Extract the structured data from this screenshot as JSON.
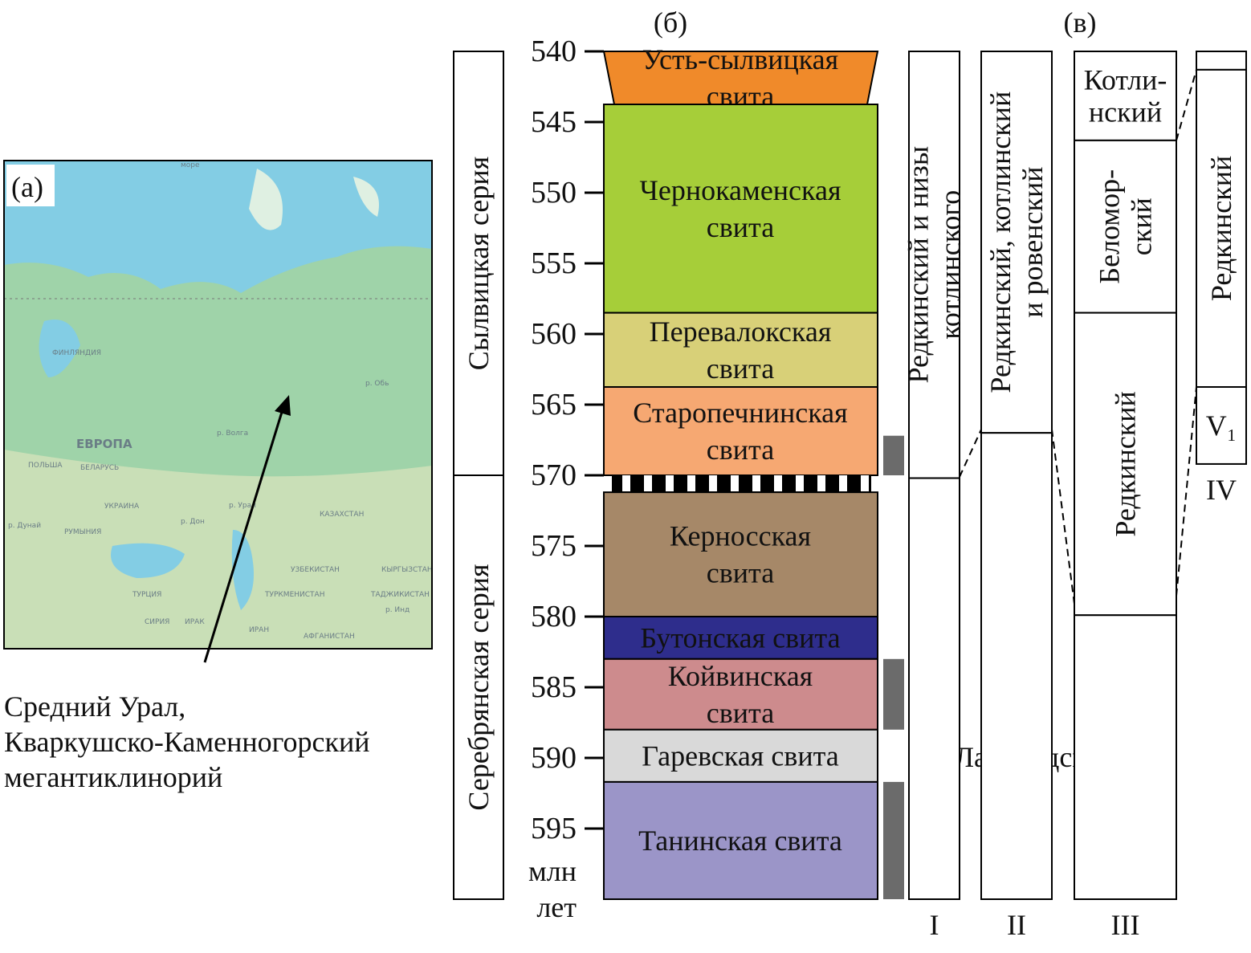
{
  "panels": {
    "a": "(а)",
    "b": "(б)",
    "v": "(в)"
  },
  "map": {
    "labels": [
      "море",
      "ФИНЛЯНДИЯ",
      "ЕВРОПА",
      "р. Обь",
      "р. Волга",
      "ПОЛЬША",
      "БЕЛАРУСЬ",
      "УКРАИНА",
      "р. Дон",
      "р. Урал",
      "КАЗАХСТАН",
      "р. Дунай",
      "РУМЫНИЯ",
      "УЗБЕКИСТАН",
      "КЫРГЫЗСТАН",
      "ТУРЦИЯ",
      "ТУРКМЕНИСТАН",
      "ТАДЖИКИСТАН",
      "р. Инд",
      "СИРИЯ",
      "ИРАК",
      "ИРАН",
      "АФГАНИСТАН"
    ]
  },
  "caption": [
    "Средний Урал,",
    "Кваркушско-Каменногорский",
    "мегантиклинорий"
  ],
  "age_axis": {
    "lim": [
      540,
      600
    ],
    "ticks": [
      540,
      545,
      550,
      555,
      560,
      565,
      570,
      575,
      580,
      585,
      590,
      595
    ],
    "unit": [
      "млн",
      "лет"
    ]
  },
  "series": [
    {
      "name": "Сылвицкая серия",
      "top": 540,
      "bottom": 570
    },
    {
      "name": "Серебрянская серия",
      "top": 570,
      "bottom": 600
    }
  ],
  "formations": [
    {
      "name": [
        "Усть-сылвицкая",
        "свита"
      ],
      "top": 540,
      "bottom": 543.75,
      "color": "#f08a2a",
      "shape": "trapezoid"
    },
    {
      "name": [
        "Чернокаменская",
        "свита"
      ],
      "top": 543.75,
      "bottom": 558.5,
      "color": "#a6ce39"
    },
    {
      "name": [
        "Перевалокская",
        "свита"
      ],
      "top": 558.5,
      "bottom": 563.75,
      "color": "#d8d078"
    },
    {
      "name": [
        "Старопечнинская",
        "свита"
      ],
      "top": 563.75,
      "bottom": 570,
      "color": "#f6a872"
    },
    {
      "name": [
        "Керносская",
        "свита"
      ],
      "top": 571.2,
      "bottom": 580,
      "color": "#a68868"
    },
    {
      "name": [
        "Бутонская свита"
      ],
      "top": 580,
      "bottom": 583,
      "color": "#2e2d8c",
      "label_color": "#ffffff"
    },
    {
      "name": [
        "Койвинская",
        "свита"
      ],
      "top": 583,
      "bottom": 588,
      "color": "#cd8b8d"
    },
    {
      "name": [
        "Гаревская свита"
      ],
      "top": 588,
      "bottom": 591.7,
      "color": "#d9d9d9"
    },
    {
      "name": [
        "Танинская свита"
      ],
      "top": 591.7,
      "bottom": 600,
      "color": "#9b95c8"
    }
  ],
  "unconformity": {
    "top": 570,
    "bottom": 571.2
  },
  "dated_intervals": [
    {
      "top": 567.2,
      "bottom": 570
    },
    {
      "top": 583,
      "bottom": 588
    },
    {
      "top": 591.7,
      "bottom": 600
    }
  ],
  "columns": [
    {
      "label": "I",
      "units": [
        {
          "name": [
            "Редкинский и низы",
            "котлинского"
          ],
          "orientation": "vertical",
          "top": 540,
          "bottom": 570.2
        },
        {
          "top": 570.2,
          "bottom": 600
        }
      ]
    },
    {
      "label": "II",
      "units": [
        {
          "name": [
            "Редкинский, котлинский",
            "и ровенский"
          ],
          "orientation": "vertical",
          "top": 540,
          "bottom": 567
        },
        {
          "top": 567,
          "bottom": 600
        }
      ]
    },
    {
      "label": "III",
      "units": [
        {
          "name": [
            "Котли-",
            "нский"
          ],
          "orientation": "horizontal",
          "top": 540,
          "bottom": 546.3
        },
        {
          "name": [
            "Беломор-",
            "ский"
          ],
          "orientation": "vertical",
          "top": 546.3,
          "bottom": 558.5
        },
        {
          "name": [
            "Редкинский"
          ],
          "orientation": "vertical",
          "top": 558.5,
          "bottom": 579.9
        },
        {
          "top": 579.9,
          "bottom": 600
        }
      ]
    },
    {
      "label": "IV",
      "units": [
        {
          "top": 540,
          "bottom": 541.3
        },
        {
          "name": [
            "Редкинский"
          ],
          "orientation": "vertical",
          "top": 541.3,
          "bottom": 563.75
        },
        {
          "name": [
            "V₁"
          ],
          "orientation": "horizontal",
          "top": 563.75,
          "bottom": 569.2
        }
      ]
    }
  ],
  "lapland_label": "Лапландский"
}
